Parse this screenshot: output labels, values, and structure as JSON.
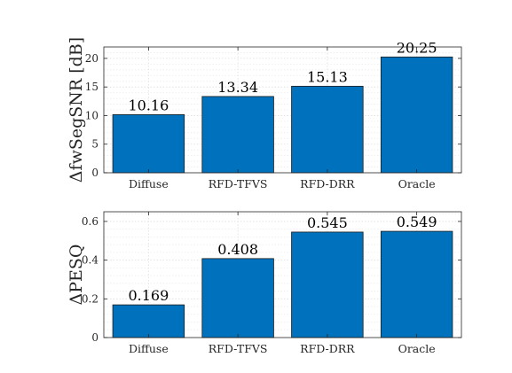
{
  "chart_data": [
    {
      "type": "bar",
      "categories": [
        "Diffuse",
        "RFD-TFVS",
        "RFD-DRR",
        "Oracle"
      ],
      "values": [
        10.16,
        13.34,
        15.13,
        20.25
      ],
      "data_labels": [
        "10.16",
        "13.34",
        "15.13",
        "20.25"
      ],
      "ylabel": "ΔfwSegSNR [dB]",
      "ylim": [
        0,
        22
      ],
      "yticks": [
        0,
        5,
        10,
        15,
        20
      ],
      "ytick_labels": [
        "0",
        "5",
        "10",
        "15",
        "20"
      ],
      "grid": true,
      "color": "#0072bd"
    },
    {
      "type": "bar",
      "categories": [
        "Diffuse",
        "RFD-TFVS",
        "RFD-DRR",
        "Oracle"
      ],
      "values": [
        0.169,
        0.408,
        0.545,
        0.549
      ],
      "data_labels": [
        "0.169",
        "0.408",
        "0.545",
        "0.549"
      ],
      "ylabel": "ΔPESQ",
      "ylim": [
        0,
        0.65
      ],
      "yticks": [
        0,
        0.2,
        0.4,
        0.6
      ],
      "ytick_labels": [
        "0",
        "0.2",
        "0.4",
        "0.6"
      ],
      "grid": true,
      "color": "#0072bd"
    }
  ]
}
